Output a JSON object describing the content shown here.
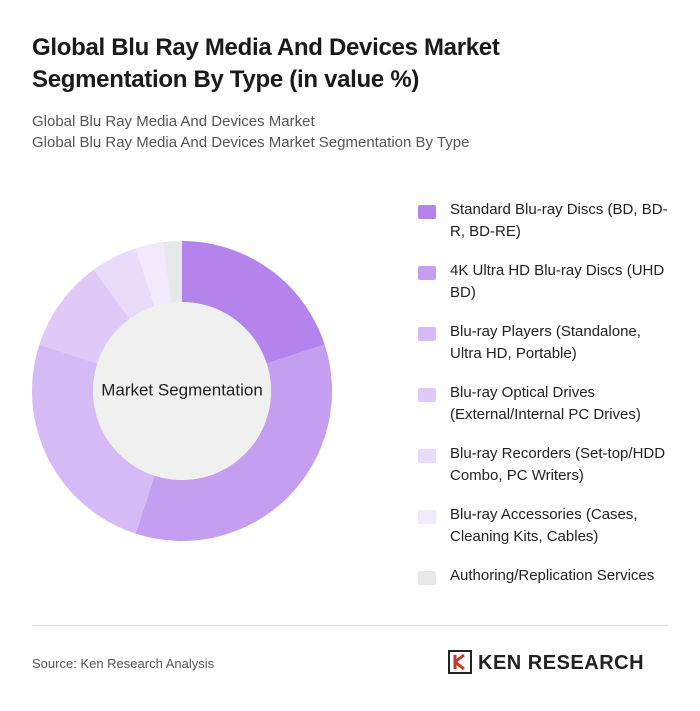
{
  "chart_data": {
    "type": "donut",
    "title": "Global Blu Ray Media And Devices Market Segmentation By Type (in value %)",
    "subtitles": [
      "Global Blu Ray Media And Devices Market",
      "Global Blu Ray Media And Devices Market Segmentation By Type"
    ],
    "center_label": "Market Segmentation",
    "categories": [
      "Standard Blu-ray Discs (BD, BD-R, BD-RE)",
      "4K Ultra HD Blu-ray Discs (UHD BD)",
      "Blu-ray Players (Standalone, Ultra HD, Portable)",
      "Blu-ray Optical Drives (External/Internal PC Drives)",
      "Blu-ray Recorders (Set-top/HDD Combo, PC Writers)",
      "Blu-ray Accessories (Cases, Cleaning Kits, Cables)",
      "Authoring/Replication Services"
    ],
    "values": [
      20,
      35,
      25,
      10,
      5,
      3,
      2
    ],
    "colors": [
      "#b483ec",
      "#c49ef0",
      "#d4bbf5",
      "#dfcaf7",
      "#e9dbfa",
      "#f1e9fc",
      "#e8e8e8"
    ],
    "source": "Source: Ken Research Analysis",
    "brand": "KEN RESEARCH"
  }
}
